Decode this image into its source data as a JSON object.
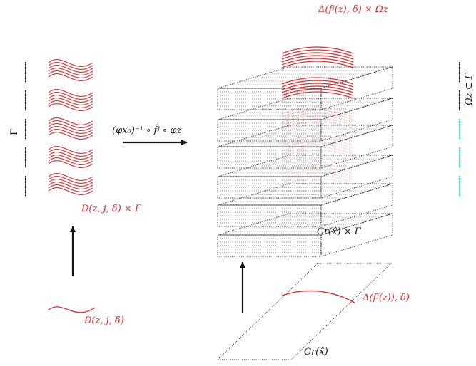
{
  "colors": {
    "red": "#e8262a",
    "black": "#111111",
    "cyan": "#2fd6e6"
  },
  "labels": {
    "gamma_left": "Γ",
    "product_left": "D(z, j, δ) × Γ",
    "domain_bottom_left": "D(z, j, δ)",
    "map_label": "(φx₀)⁻¹ ∘ f̂ʲ ∘ φz",
    "top_right": "Δ(fʲ(z), δ) × Ωz",
    "cylinder_product": "Cr(x̂) × Γ",
    "delta_bottom": "Δ(fʲ(z)), δ)",
    "cylinder_base": "Cr(x̂)",
    "omega_subset": "Ωz ⊂ Γ"
  },
  "structure": {
    "dot_columns_left": 5,
    "red_wave_stacks_left": 5,
    "box_layers": 6,
    "highlighted_layers": 5,
    "cyan_columns_right": 5
  }
}
